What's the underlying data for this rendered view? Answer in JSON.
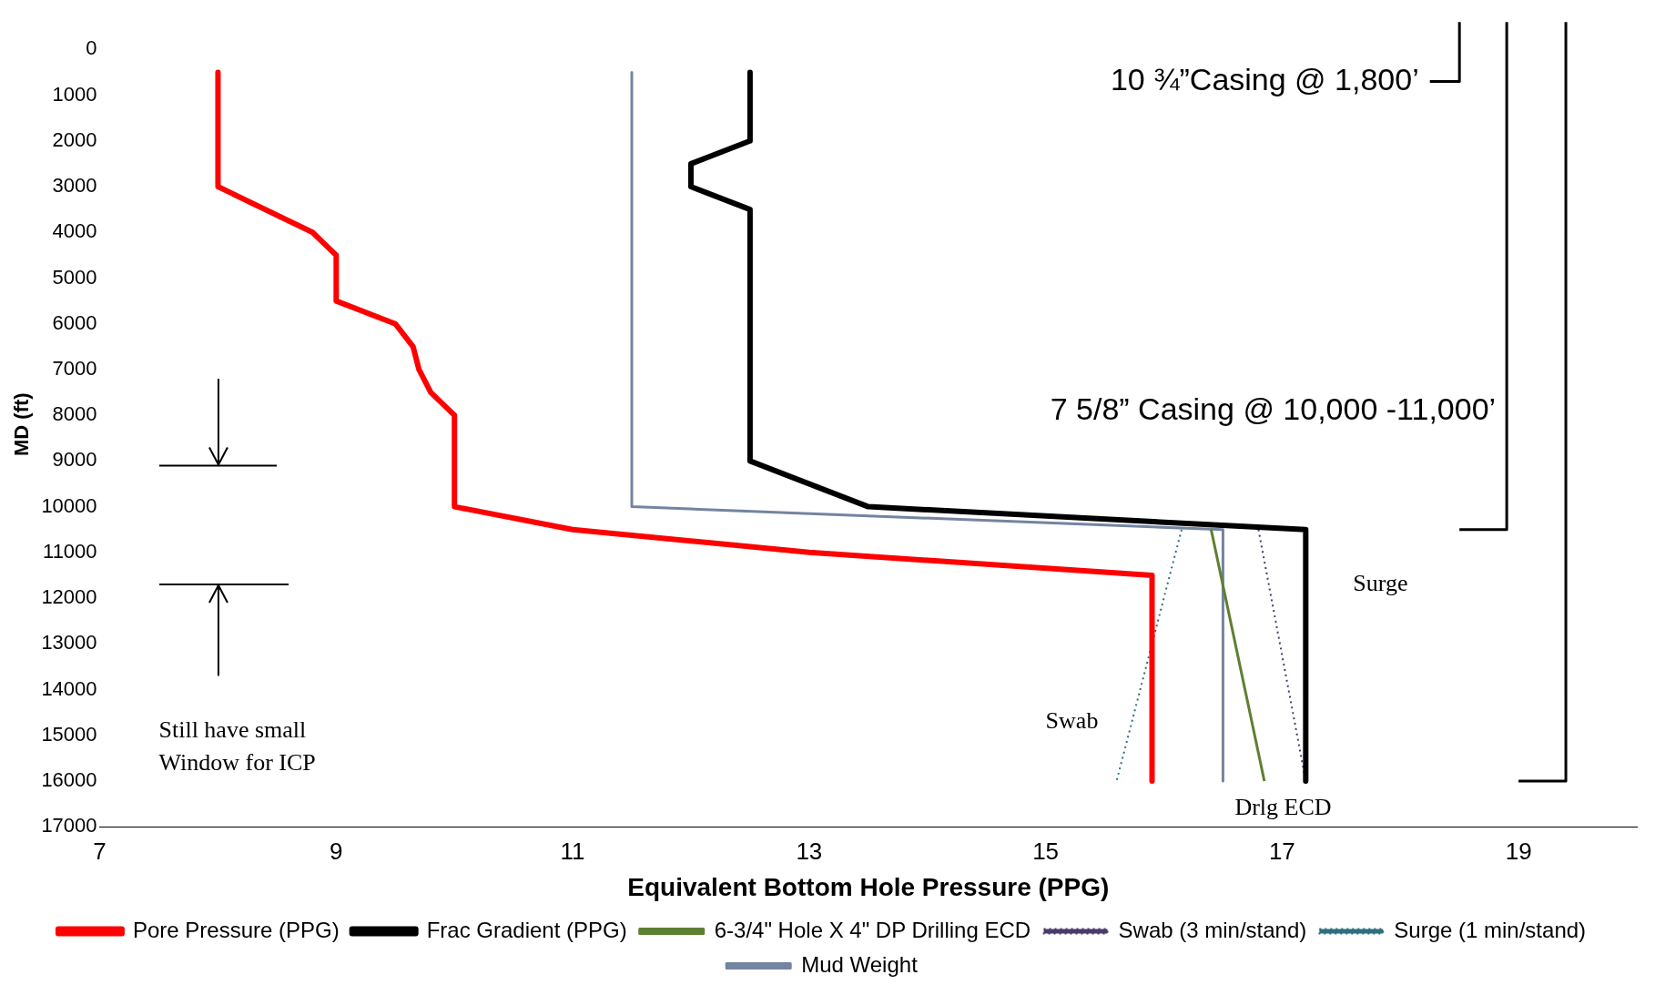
{
  "chart_data": {
    "type": "line",
    "xlabel": "Equivalent Bottom Hole Pressure (PPG)",
    "ylabel": "MD (ft)",
    "xlim": [
      7,
      20
    ],
    "xticks": [
      7,
      9,
      11,
      13,
      15,
      17,
      19
    ],
    "ylim": [
      17000,
      -600
    ],
    "yticks": [
      0,
      1000,
      2000,
      3000,
      4000,
      5000,
      6000,
      7000,
      8000,
      9000,
      10000,
      11000,
      12000,
      13000,
      14000,
      15000,
      16000,
      17000
    ],
    "grid": false,
    "legend": "bottom",
    "marker": "none",
    "series": [
      {
        "name": "Pore Pressure (PPG)",
        "color": "#ff0000",
        "line_style": "solid",
        "x": [
          8,
          8,
          8.8,
          9,
          9,
          9.5,
          9.65,
          9.7,
          9.8,
          10,
          10,
          11,
          13,
          15.9,
          15.9
        ],
        "values": [
          500,
          3000,
          4000,
          4500,
          5500,
          6000,
          6500,
          7000,
          7500,
          8000,
          10000,
          10500,
          11000,
          11500,
          16000
        ]
      },
      {
        "name": "Frac Gradient (PPG)",
        "color": "#000000",
        "line_style": "solid",
        "x": [
          12.5,
          12.5,
          12,
          12,
          12.5,
          12.5,
          13.5,
          17.2,
          17.2
        ],
        "values": [
          500,
          2000,
          2500,
          3000,
          3500,
          9000,
          10000,
          10500,
          16000
        ]
      },
      {
        "name": "6-3/4\" Hole X 4\" DP Drilling ECD",
        "color": "#5e7f32",
        "line_style": "solid",
        "x": [
          16.4,
          16.85
        ],
        "values": [
          10500,
          16000
        ]
      },
      {
        "name": "Swab (3 min/stand)",
        "color": "#4b3a6b",
        "line_style": "dotted",
        "x": [
          16.8,
          17.2
        ],
        "values": [
          10500,
          16000
        ]
      },
      {
        "name": "Surge (1 min/stand)",
        "color": "#2f6f7f",
        "line_style": "dotted",
        "x": [
          16.15,
          15.6
        ],
        "values": [
          10500,
          16000
        ]
      },
      {
        "name": "Mud Weight",
        "color": "#7384a0",
        "line_style": "solid",
        "x": [
          11.5,
          11.5,
          16.5,
          16.5
        ],
        "values": [
          500,
          10000,
          10500,
          16000
        ]
      },
      {
        "color": "#000000",
        "line_style": "solid",
        "x": [
          18.5,
          18.5,
          18.25
        ],
        "values": [
          -600,
          700,
          700
        ]
      },
      {
        "color": "#000000",
        "line_style": "solid",
        "x": [
          18.9,
          18.9,
          18.5
        ],
        "values": [
          -600,
          10500,
          10500
        ]
      },
      {
        "color": "#000000",
        "line_style": "solid",
        "x": [
          19.4,
          19.4,
          19
        ],
        "values": [
          -600,
          16000,
          16000
        ]
      }
    ],
    "annotations": [
      {
        "text": "10 ¾”Casing @ 1,800’",
        "x": 18.25,
        "y": 700
      },
      {
        "text": "7 5/8” Casing @ 10,000 -11,000’",
        "x": 18.9,
        "y": 7900
      },
      "Surge",
      "Swab",
      "Drlg ECD",
      "Still have small\nWindow for ICP"
    ]
  }
}
